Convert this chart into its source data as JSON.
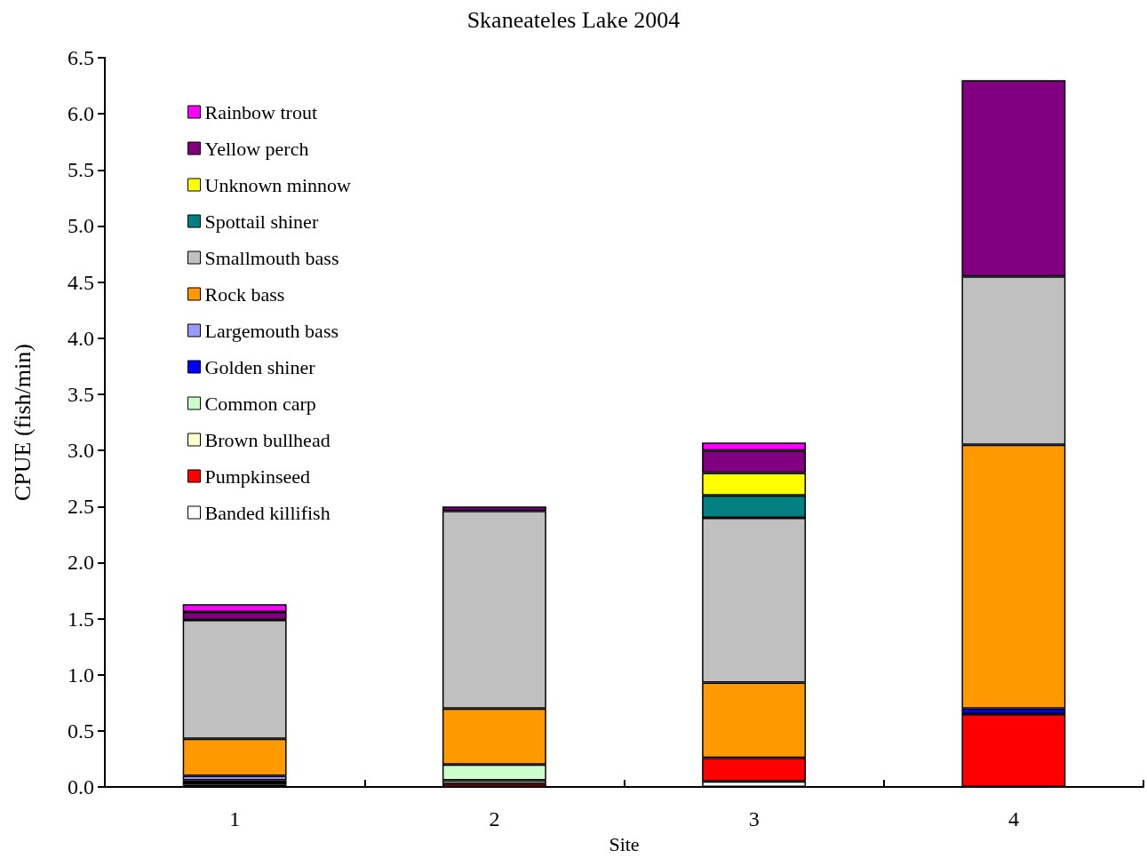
{
  "chart_data": {
    "type": "bar",
    "stacked": true,
    "title": "Skaneateles Lake 2004",
    "xlabel": "Site",
    "ylabel": "CPUE (fish/min)",
    "categories": [
      "1",
      "2",
      "3",
      "4"
    ],
    "series": [
      {
        "name": "Banded killifish",
        "color": "#ffffff",
        "values": [
          0.02,
          null,
          0.05,
          null
        ]
      },
      {
        "name": "Pumpkinseed",
        "color": "#ff0000",
        "values": [
          null,
          0.03,
          0.21,
          0.65
        ]
      },
      {
        "name": "Brown bullhead",
        "color": "#ffffcc",
        "values": [
          0.02,
          0.03,
          null,
          null
        ]
      },
      {
        "name": "Common carp",
        "color": "#ccffcc",
        "values": [
          0.02,
          0.14,
          null,
          null
        ]
      },
      {
        "name": "Golden shiner",
        "color": "#0000ff",
        "values": [
          null,
          null,
          null,
          0.05
        ]
      },
      {
        "name": "Largemouth bass",
        "color": "#9999ff",
        "values": [
          0.04,
          null,
          null,
          null
        ]
      },
      {
        "name": "Rock bass",
        "color": "#ff9900",
        "values": [
          0.33,
          0.5,
          0.67,
          2.35
        ]
      },
      {
        "name": "Smallmouth bass",
        "color": "#c0c0c0",
        "values": [
          1.06,
          1.76,
          1.47,
          1.5
        ]
      },
      {
        "name": "Spottail shiner",
        "color": "#008080",
        "values": [
          null,
          null,
          0.2,
          null
        ]
      },
      {
        "name": "Unknown minnow",
        "color": "#ffff00",
        "values": [
          null,
          null,
          0.2,
          null
        ]
      },
      {
        "name": "Yellow perch",
        "color": "#800080",
        "values": [
          0.07,
          0.04,
          0.2,
          1.75
        ]
      },
      {
        "name": "Rainbow trout",
        "color": "#ff00ff",
        "values": [
          0.07,
          null,
          0.07,
          null
        ]
      }
    ],
    "ylim": [
      0,
      6.5
    ],
    "yticks": [
      {
        "value": 0,
        "label": "0.0"
      },
      {
        "value": 0.5,
        "label": "0.5"
      },
      {
        "value": 1,
        "label": "1.0"
      },
      {
        "value": 1.5,
        "label": "1.5"
      },
      {
        "value": 2,
        "label": "2.0"
      },
      {
        "value": 2.5,
        "label": "2.5"
      },
      {
        "value": 3,
        "label": "3.0"
      },
      {
        "value": 3.5,
        "label": "3.5"
      },
      {
        "value": 4,
        "label": "4.0"
      },
      {
        "value": 4.5,
        "label": "4.5"
      },
      {
        "value": 5,
        "label": "5.0"
      },
      {
        "value": 5.5,
        "label": "5.5"
      },
      {
        "value": 6,
        "label": "6.0"
      },
      {
        "value": 6.5,
        "label": "6.5"
      }
    ],
    "grid": false,
    "legend": "top left"
  }
}
